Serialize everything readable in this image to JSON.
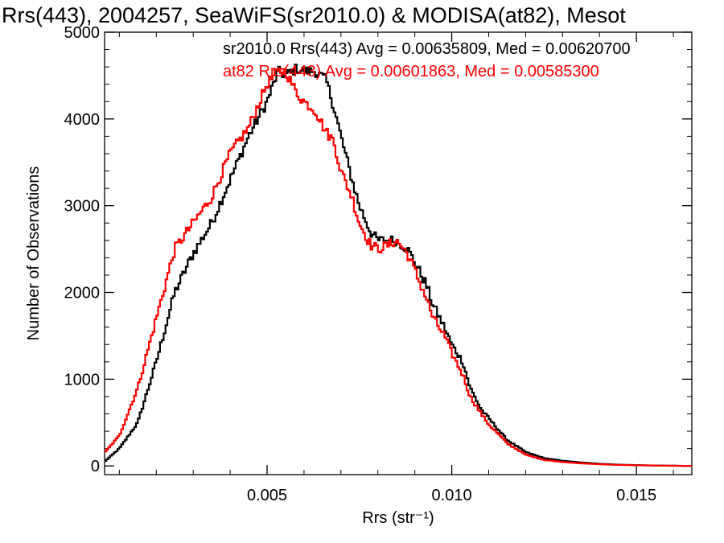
{
  "chart_data": {
    "type": "line",
    "step": true,
    "title": "Rrs(443), 2004257, SeaWiFS(sr2010.0) & MODISA(at82), Mesot",
    "xlabel": "Rrs (str⁻¹)",
    "ylabel": "Number of Observations",
    "xlim": [
      0.0006,
      0.0165
    ],
    "ylim": [
      -100,
      5000
    ],
    "xticks": [
      {
        "value": 0.005,
        "label": "0.005"
      },
      {
        "value": 0.01,
        "label": "0.010"
      },
      {
        "value": 0.015,
        "label": "0.015"
      }
    ],
    "yticks": [
      {
        "value": 0,
        "label": "0"
      },
      {
        "value": 1000,
        "label": "1000"
      },
      {
        "value": 2000,
        "label": "2000"
      },
      {
        "value": 3000,
        "label": "3000"
      },
      {
        "value": 4000,
        "label": "4000"
      },
      {
        "value": 5000,
        "label": "5000"
      }
    ],
    "grid": false,
    "legend_position": "top-right",
    "annotations": [
      {
        "text": "sr2010.0 Rrs(443) Avg = 0.00635809, Med = 0.00620700",
        "color": "#000000"
      },
      {
        "text": "at82 Rrs(443) Avg = 0.00601863, Med = 0.00585300",
        "color": "#ff0000"
      }
    ],
    "series": [
      {
        "name": "sr2010.0",
        "color": "#000000",
        "x": [
          0.0006,
          0.001,
          0.0015,
          0.002,
          0.0025,
          0.003,
          0.0035,
          0.004,
          0.0045,
          0.005,
          0.0053,
          0.0055,
          0.0058,
          0.006,
          0.0063,
          0.0066,
          0.0068,
          0.007,
          0.0073,
          0.0075,
          0.0078,
          0.008,
          0.0083,
          0.0085,
          0.0088,
          0.009,
          0.0093,
          0.0095,
          0.0098,
          0.01,
          0.0103,
          0.0105,
          0.0108,
          0.011,
          0.0113,
          0.0115,
          0.012,
          0.0125,
          0.013,
          0.0135,
          0.014,
          0.0145,
          0.015,
          0.0155,
          0.016,
          0.0165
        ],
        "y": [
          50,
          200,
          500,
          1200,
          2000,
          2450,
          2800,
          3300,
          3800,
          4200,
          4550,
          4500,
          4580,
          4550,
          4550,
          4450,
          4150,
          3800,
          3300,
          3000,
          2700,
          2600,
          2600,
          2600,
          2500,
          2350,
          2100,
          1850,
          1600,
          1400,
          1200,
          900,
          650,
          550,
          400,
          300,
          160,
          90,
          60,
          40,
          25,
          15,
          10,
          5,
          3,
          0
        ]
      },
      {
        "name": "at82",
        "color": "#ff0000",
        "x": [
          0.0006,
          0.001,
          0.0015,
          0.002,
          0.0025,
          0.003,
          0.0035,
          0.004,
          0.0045,
          0.005,
          0.0053,
          0.0055,
          0.0058,
          0.006,
          0.0063,
          0.0066,
          0.0068,
          0.007,
          0.0073,
          0.0075,
          0.0078,
          0.008,
          0.0083,
          0.0085,
          0.0088,
          0.009,
          0.0093,
          0.0095,
          0.0098,
          0.01,
          0.0103,
          0.0105,
          0.0108,
          0.011,
          0.0113,
          0.0115,
          0.012,
          0.0125,
          0.013,
          0.0135,
          0.014,
          0.0145,
          0.015,
          0.0155,
          0.016,
          0.0165
        ],
        "y": [
          150,
          350,
          900,
          1700,
          2500,
          2800,
          3100,
          3600,
          3900,
          4400,
          4550,
          4550,
          4300,
          4200,
          4100,
          3850,
          3750,
          3400,
          3100,
          2800,
          2550,
          2500,
          2550,
          2600,
          2450,
          2250,
          1950,
          1700,
          1500,
          1300,
          1050,
          800,
          600,
          480,
          350,
          260,
          130,
          70,
          45,
          30,
          20,
          12,
          8,
          4,
          2,
          0
        ]
      }
    ]
  }
}
